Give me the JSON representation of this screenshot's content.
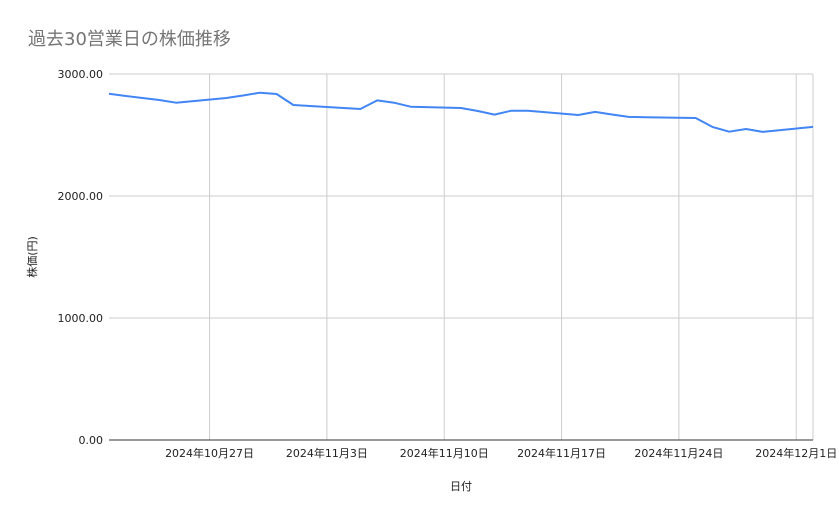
{
  "chart_data": {
    "type": "line",
    "title": "過去30営業日の株価推移",
    "xlabel": "日付",
    "ylabel": "株価(円)",
    "ylim": [
      0,
      3000
    ],
    "xlim": [
      "2024-10-21",
      "2024-12-02"
    ],
    "yticks": [
      0,
      1000,
      2000,
      3000
    ],
    "ytick_labels": [
      "0.00",
      "1000.00",
      "2000.00",
      "3000.00"
    ],
    "xticks": [
      "2024-10-27",
      "2024-11-03",
      "2024-11-10",
      "2024-11-17",
      "2024-11-24",
      "2024-12-01"
    ],
    "xtick_labels": [
      "2024年10月27日",
      "2024年11月3日",
      "2024年11月10日",
      "2024年11月17日",
      "2024年11月24日",
      "2024年12月1日"
    ],
    "grid": true,
    "legend": "none",
    "color": "#4285f4",
    "x": [
      "2024-10-21",
      "2024-10-22",
      "2024-10-23",
      "2024-10-24",
      "2024-10-25",
      "2024-10-28",
      "2024-10-29",
      "2024-10-30",
      "2024-10-31",
      "2024-11-01",
      "2024-11-05",
      "2024-11-06",
      "2024-11-07",
      "2024-11-08",
      "2024-11-11",
      "2024-11-12",
      "2024-11-13",
      "2024-11-14",
      "2024-11-15",
      "2024-11-18",
      "2024-11-19",
      "2024-11-20",
      "2024-11-21",
      "2024-11-22",
      "2024-11-25",
      "2024-11-26",
      "2024-11-27",
      "2024-11-28",
      "2024-11-29",
      "2024-12-02"
    ],
    "values": [
      2838,
      2820,
      2803,
      2787,
      2765,
      2803,
      2824,
      2847,
      2836,
      2746,
      2713,
      2784,
      2765,
      2732,
      2721,
      2697,
      2667,
      2699,
      2699,
      2664,
      2689,
      2668,
      2648,
      2646,
      2639,
      2566,
      2527,
      2549,
      2525,
      2566
    ]
  }
}
